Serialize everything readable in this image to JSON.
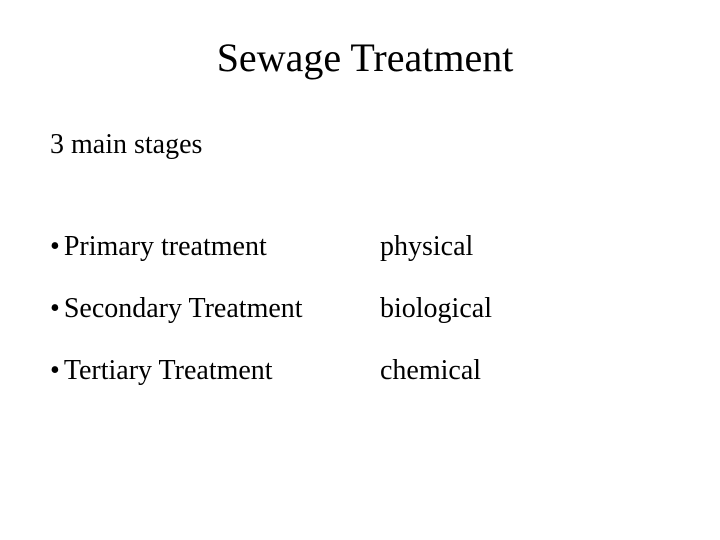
{
  "title": "Sewage Treatment",
  "subtitle": "3 main stages",
  "items": [
    {
      "label": "Primary treatment",
      "value": "physical"
    },
    {
      "label": "Secondary Treatment",
      "value": "biological"
    },
    {
      "label": "Tertiary Treatment",
      "value": "chemical"
    }
  ],
  "colors": {
    "background": "#ffffff",
    "text": "#000000"
  },
  "typography": {
    "font_family": "Times New Roman",
    "title_fontsize": 40,
    "body_fontsize": 28
  }
}
